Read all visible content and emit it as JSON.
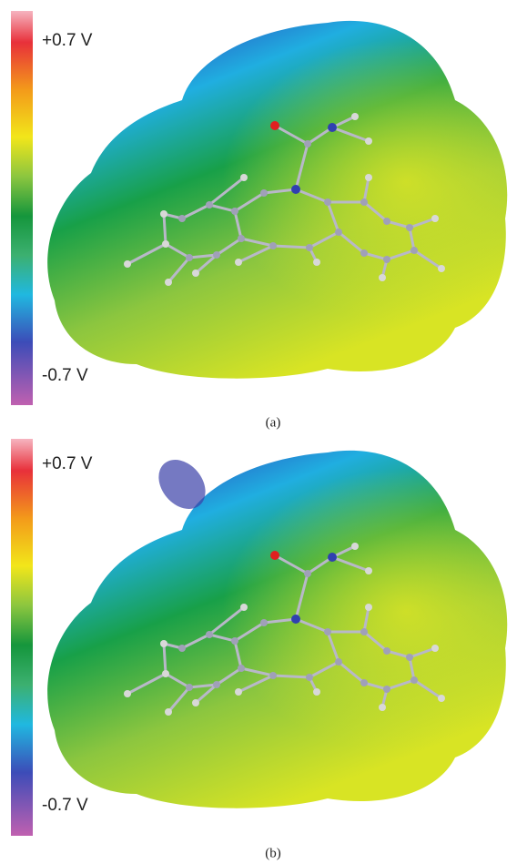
{
  "panels": [
    {
      "max_label": "+0.7 V",
      "min_label": "-0.7 V",
      "caption": "(a)"
    },
    {
      "max_label": "+0.7 V",
      "min_label": "-0.7 V",
      "caption": "(b)"
    }
  ]
}
